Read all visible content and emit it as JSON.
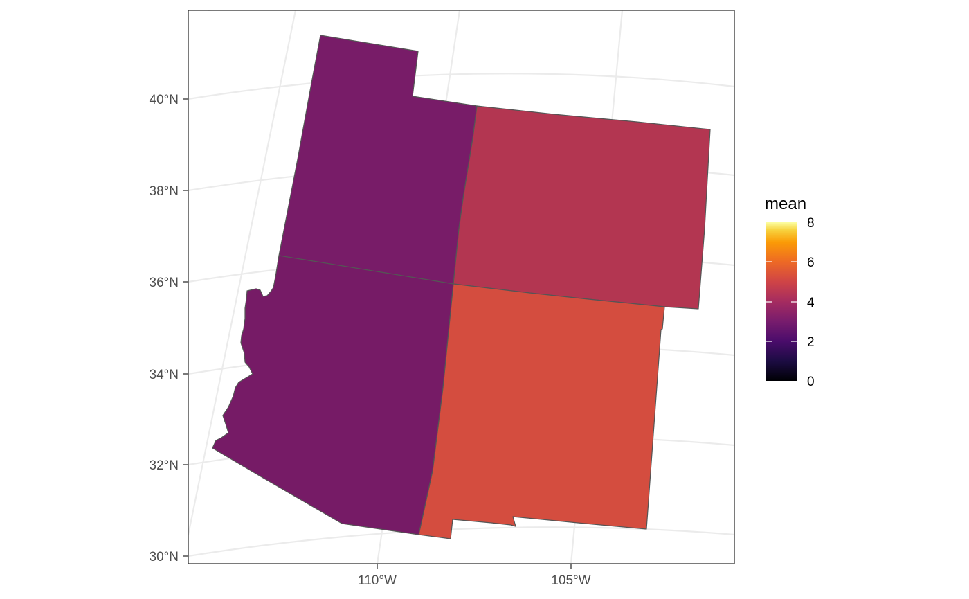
{
  "map": {
    "y_axis_labels": [
      "40°N",
      "38°N",
      "36°N",
      "34°N",
      "32°N",
      "30°N"
    ],
    "x_axis_labels": [
      "110°W",
      "105°W"
    ],
    "regions": [
      {
        "name": "Utah",
        "mean": 2.0,
        "color": "#781c68"
      },
      {
        "name": "Colorado",
        "mean": 3.6,
        "color": "#b33651"
      },
      {
        "name": "Arizona",
        "mean": 2.0,
        "color": "#761b66"
      },
      {
        "name": "New Mexico",
        "mean": 4.6,
        "color": "#d44d3f"
      }
    ]
  },
  "legend": {
    "title": "mean",
    "ticks": [
      "8",
      "6",
      "4",
      "2",
      "0"
    ],
    "range": [
      0,
      8
    ],
    "palette": "inferno"
  },
  "colors": {
    "panel_border": "#333333",
    "grid": "#ebebeb",
    "state_border": "#555555"
  }
}
